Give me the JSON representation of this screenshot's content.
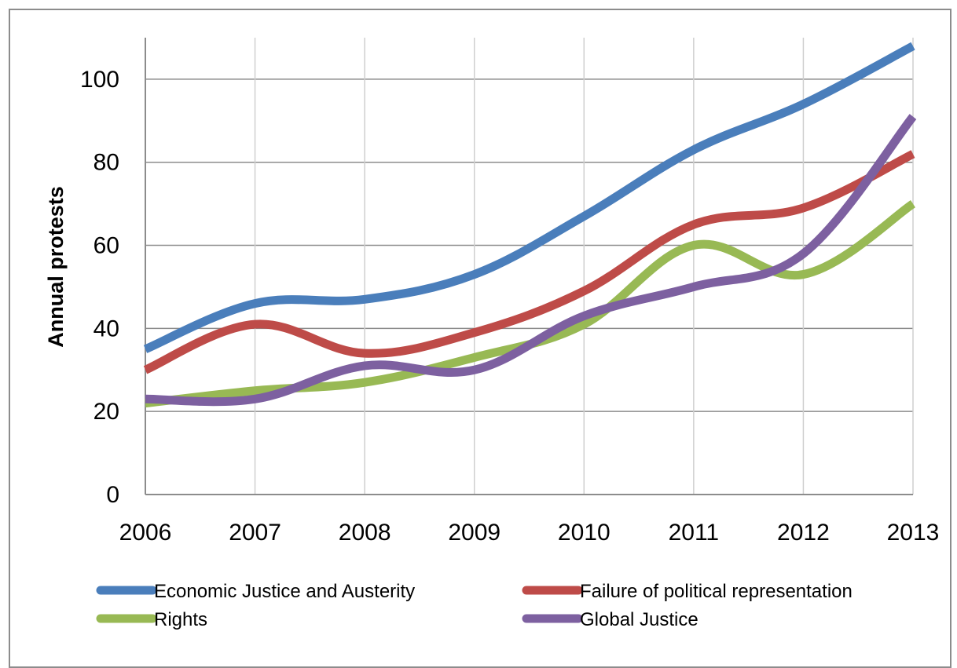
{
  "chart_data": {
    "type": "line",
    "title": "",
    "xlabel": "",
    "ylabel": "Annual protests",
    "x": [
      "2006",
      "2007",
      "2008",
      "2009",
      "2010",
      "2011",
      "2012",
      "2013"
    ],
    "ylim": [
      0,
      110
    ],
    "yticks": [
      0,
      20,
      40,
      60,
      80,
      100
    ],
    "grid": true,
    "legend_position": "bottom",
    "series": [
      {
        "name": "Economic Justice and Austerity",
        "color": "#4a7ebb",
        "values": [
          35,
          46,
          47,
          53,
          67,
          83,
          94,
          108
        ]
      },
      {
        "name": "Failure of political representation",
        "color": "#be4b48",
        "values": [
          30,
          41,
          34,
          39,
          49,
          65,
          69,
          82
        ]
      },
      {
        "name": "Rights",
        "color": "#98b954",
        "values": [
          22,
          25,
          27,
          33,
          41,
          60,
          53,
          70
        ]
      },
      {
        "name": "Global Justice",
        "color": "#7d60a0",
        "values": [
          23,
          23,
          31,
          30,
          43,
          50,
          58,
          91
        ]
      }
    ]
  }
}
